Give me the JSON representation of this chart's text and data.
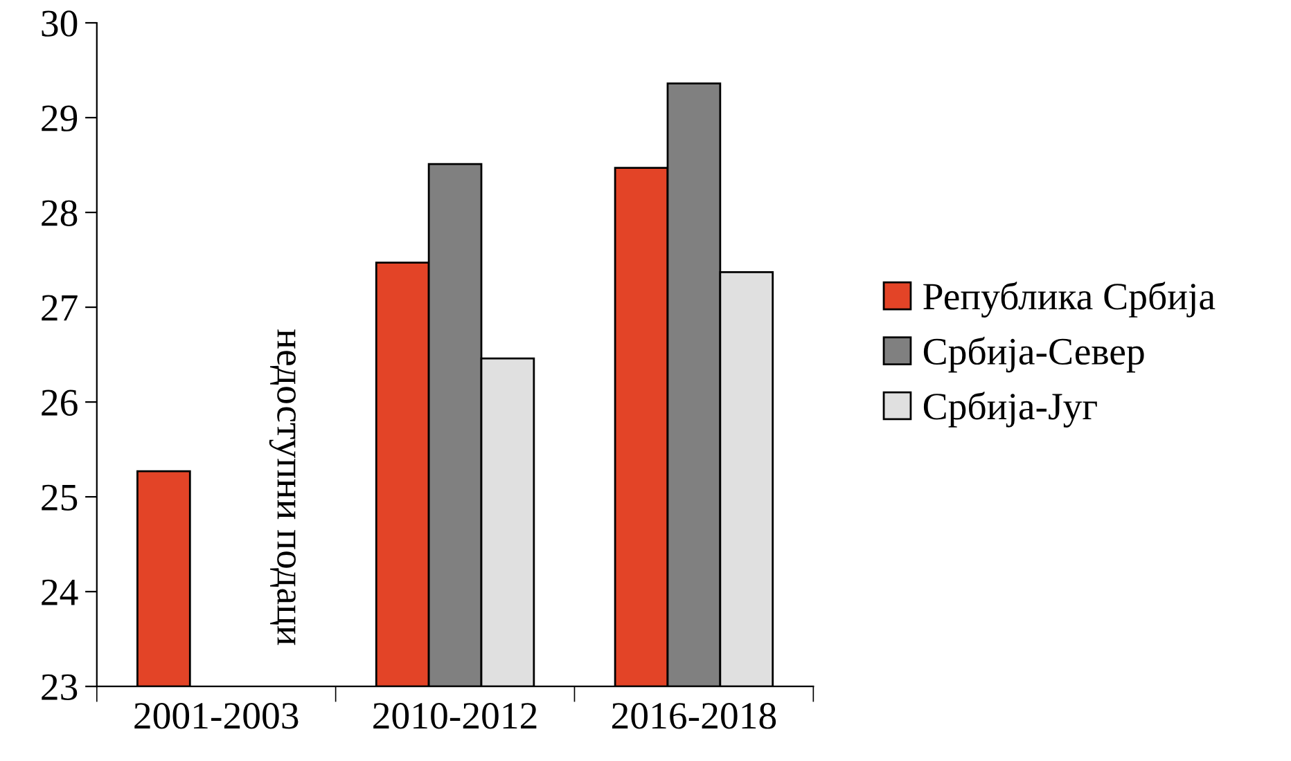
{
  "chart_data": {
    "type": "bar",
    "categories": [
      "2001-2003",
      "2010-2012",
      "2016-2018"
    ],
    "series": [
      {
        "name": "Република Србија",
        "color": "#e34427",
        "values": [
          25.27,
          27.47,
          28.47
        ]
      },
      {
        "name": "Србија-Север",
        "color": "#808080",
        "values": [
          null,
          28.51,
          29.36
        ]
      },
      {
        "name": "Србија-Југ",
        "color": "#e0e0e0",
        "values": [
          null,
          26.46,
          27.37
        ]
      }
    ],
    "ylim": [
      23,
      30
    ],
    "yticks": [
      23,
      24,
      25,
      26,
      27,
      28,
      29,
      30
    ],
    "grid": false,
    "legend": "right",
    "annotations": [
      "недоступни подаци"
    ]
  }
}
